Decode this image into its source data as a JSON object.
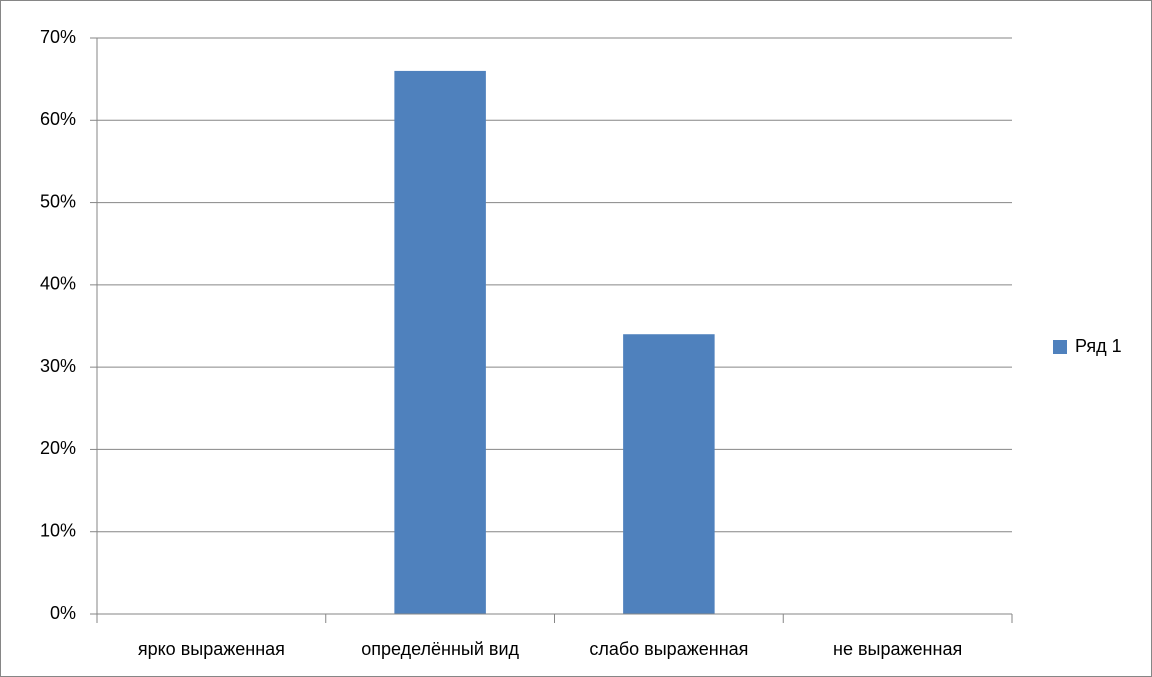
{
  "chart_data": {
    "type": "bar",
    "categories": [
      "ярко выраженная",
      "определённый вид",
      "слабо выраженная",
      "не выраженная"
    ],
    "series": [
      {
        "name": "Ряд 1",
        "color": "#4f81bd",
        "values": [
          0,
          66,
          34,
          0
        ]
      }
    ],
    "ylim": [
      0,
      70
    ],
    "yticks": [
      {
        "value": 0,
        "label": "0%"
      },
      {
        "value": 10,
        "label": "10%"
      },
      {
        "value": 20,
        "label": "20%"
      },
      {
        "value": 30,
        "label": "30%"
      },
      {
        "value": 40,
        "label": "40%"
      },
      {
        "value": 50,
        "label": "50%"
      },
      {
        "value": 60,
        "label": "60%"
      },
      {
        "value": 70,
        "label": "70%"
      }
    ],
    "grid": true,
    "legend": "right"
  }
}
